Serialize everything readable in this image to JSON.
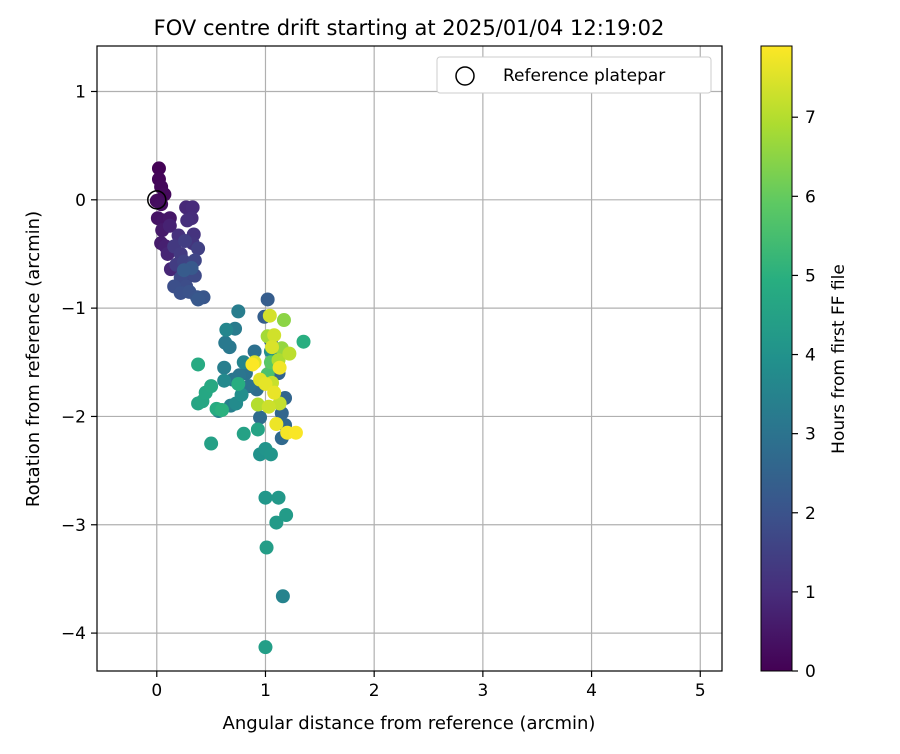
{
  "chart_data": {
    "type": "scatter",
    "title": "FOV centre drift starting at 2025/01/04 12:19:02",
    "xlabel": "Angular distance from reference (arcmin)",
    "ylabel": "Rotation from reference (arcmin)",
    "xlim": [
      -0.55,
      5.2
    ],
    "ylim": [
      -4.35,
      1.42
    ],
    "xticks": [
      0,
      1,
      2,
      3,
      4,
      5
    ],
    "yticks": [
      1,
      0,
      -1,
      -2,
      -3,
      -4
    ],
    "xtick_labels": [
      "0",
      "1",
      "2",
      "3",
      "4",
      "5"
    ],
    "ytick_labels": [
      "1",
      "0",
      "−1",
      "−2",
      "−3",
      "−4"
    ],
    "grid": true,
    "legend": {
      "position": "top-right",
      "entries": [
        "Reference platepar"
      ]
    },
    "reference_point": {
      "x": 0,
      "y": 0,
      "marker": "open-circle",
      "color": "#000000"
    },
    "colorbar": {
      "label": "Hours from first FF file",
      "min": 0,
      "max": 7.9,
      "ticks": [
        0,
        1,
        2,
        3,
        4,
        5,
        6,
        7
      ],
      "tick_labels": [
        "0",
        "1",
        "2",
        "3",
        "4",
        "5",
        "6",
        "7"
      ],
      "colormap": "viridis"
    },
    "points": [
      {
        "x": 0.02,
        "y": 0.29,
        "c": 0.05
      },
      {
        "x": 0.02,
        "y": 0.19,
        "c": 0.1
      },
      {
        "x": 0.04,
        "y": 0.12,
        "c": 0.15
      },
      {
        "x": 0.07,
        "y": 0.05,
        "c": 0.2
      },
      {
        "x": 0.0,
        "y": -0.01,
        "c": 0.25
      },
      {
        "x": 0.04,
        "y": -0.04,
        "c": 0.3
      },
      {
        "x": 0.01,
        "y": -0.17,
        "c": 0.4
      },
      {
        "x": 0.06,
        "y": -0.19,
        "c": 0.45
      },
      {
        "x": 0.12,
        "y": -0.17,
        "c": 0.5
      },
      {
        "x": 0.05,
        "y": -0.28,
        "c": 0.55
      },
      {
        "x": 0.04,
        "y": -0.4,
        "c": 0.6
      },
      {
        "x": 0.08,
        "y": -0.43,
        "c": 0.7
      },
      {
        "x": 0.12,
        "y": -0.24,
        "c": 0.75
      },
      {
        "x": 0.1,
        "y": -0.5,
        "c": 0.8
      },
      {
        "x": 0.13,
        "y": -0.64,
        "c": 0.85
      },
      {
        "x": 0.27,
        "y": -0.07,
        "c": 0.9
      },
      {
        "x": 0.33,
        "y": -0.07,
        "c": 0.95
      },
      {
        "x": 0.32,
        "y": -0.17,
        "c": 1.0
      },
      {
        "x": 0.28,
        "y": -0.19,
        "c": 1.05
      },
      {
        "x": 0.2,
        "y": -0.33,
        "c": 1.1
      },
      {
        "x": 0.34,
        "y": -0.32,
        "c": 1.15
      },
      {
        "x": 0.33,
        "y": -0.4,
        "c": 1.2
      },
      {
        "x": 0.16,
        "y": -0.43,
        "c": 1.3
      },
      {
        "x": 0.22,
        "y": -0.5,
        "c": 1.35
      },
      {
        "x": 0.18,
        "y": -0.6,
        "c": 1.4
      },
      {
        "x": 0.26,
        "y": -0.38,
        "c": 1.45
      },
      {
        "x": 0.38,
        "y": -0.45,
        "c": 1.5
      },
      {
        "x": 0.25,
        "y": -0.57,
        "c": 1.55
      },
      {
        "x": 0.3,
        "y": -0.62,
        "c": 1.6
      },
      {
        "x": 0.35,
        "y": -0.56,
        "c": 1.65
      },
      {
        "x": 0.3,
        "y": -0.7,
        "c": 1.7
      },
      {
        "x": 0.35,
        "y": -0.7,
        "c": 1.75
      },
      {
        "x": 0.22,
        "y": -0.72,
        "c": 1.8
      },
      {
        "x": 0.27,
        "y": -0.8,
        "c": 1.85
      },
      {
        "x": 0.16,
        "y": -0.8,
        "c": 1.9
      },
      {
        "x": 0.22,
        "y": -0.86,
        "c": 1.95
      },
      {
        "x": 0.3,
        "y": -0.85,
        "c": 2.0
      },
      {
        "x": 0.37,
        "y": -0.9,
        "c": 2.05
      },
      {
        "x": 0.43,
        "y": -0.9,
        "c": 2.1
      },
      {
        "x": 0.38,
        "y": -0.92,
        "c": 2.15
      },
      {
        "x": 0.32,
        "y": -0.63,
        "c": 2.2
      },
      {
        "x": 0.25,
        "y": -0.65,
        "c": 2.25
      },
      {
        "x": 1.02,
        "y": -0.92,
        "c": 2.3
      },
      {
        "x": 0.99,
        "y": -1.08,
        "c": 2.35
      },
      {
        "x": 1.05,
        "y": -1.3,
        "c": 2.4
      },
      {
        "x": 1.1,
        "y": -1.48,
        "c": 2.45
      },
      {
        "x": 1.12,
        "y": -1.6,
        "c": 2.5
      },
      {
        "x": 1.18,
        "y": -1.83,
        "c": 2.55
      },
      {
        "x": 1.15,
        "y": -1.97,
        "c": 2.6
      },
      {
        "x": 1.18,
        "y": -2.08,
        "c": 2.65
      },
      {
        "x": 1.15,
        "y": -2.2,
        "c": 2.7
      },
      {
        "x": 0.95,
        "y": -2.01,
        "c": 2.75
      },
      {
        "x": 0.92,
        "y": -1.75,
        "c": 2.8
      },
      {
        "x": 0.9,
        "y": -1.4,
        "c": 2.9
      },
      {
        "x": 0.82,
        "y": -1.6,
        "c": 2.95
      },
      {
        "x": 0.85,
        "y": -1.72,
        "c": 3.0
      },
      {
        "x": 0.76,
        "y": -1.62,
        "c": 3.05
      },
      {
        "x": 0.7,
        "y": -1.66,
        "c": 3.1
      },
      {
        "x": 0.67,
        "y": -1.36,
        "c": 3.15
      },
      {
        "x": 0.63,
        "y": -1.32,
        "c": 3.2
      },
      {
        "x": 0.72,
        "y": -1.19,
        "c": 3.25
      },
      {
        "x": 0.75,
        "y": -1.03,
        "c": 3.3
      },
      {
        "x": 0.62,
        "y": -1.55,
        "c": 3.35
      },
      {
        "x": 0.68,
        "y": -1.9,
        "c": 3.4
      },
      {
        "x": 0.57,
        "y": -1.95,
        "c": 3.45
      },
      {
        "x": 1.16,
        "y": -3.66,
        "c": 3.5
      },
      {
        "x": 0.8,
        "y": -1.5,
        "c": 3.55
      },
      {
        "x": 0.64,
        "y": -1.2,
        "c": 3.6
      },
      {
        "x": 0.62,
        "y": -1.67,
        "c": 3.7
      },
      {
        "x": 0.73,
        "y": -1.88,
        "c": 3.75
      },
      {
        "x": 0.78,
        "y": -1.8,
        "c": 3.85
      },
      {
        "x": 1.05,
        "y": -1.4,
        "c": 3.9
      },
      {
        "x": 0.95,
        "y": -2.35,
        "c": 4.0
      },
      {
        "x": 1.0,
        "y": -2.3,
        "c": 4.05
      },
      {
        "x": 1.05,
        "y": -2.35,
        "c": 4.1
      },
      {
        "x": 1.0,
        "y": -2.75,
        "c": 4.15
      },
      {
        "x": 1.12,
        "y": -2.75,
        "c": 4.2
      },
      {
        "x": 1.1,
        "y": -2.98,
        "c": 4.25
      },
      {
        "x": 1.19,
        "y": -2.91,
        "c": 4.3
      },
      {
        "x": 1.01,
        "y": -3.21,
        "c": 4.35
      },
      {
        "x": 1.0,
        "y": -4.13,
        "c": 4.4
      },
      {
        "x": 0.5,
        "y": -2.25,
        "c": 4.45
      },
      {
        "x": 0.8,
        "y": -2.16,
        "c": 4.5
      },
      {
        "x": 0.93,
        "y": -2.12,
        "c": 4.55
      },
      {
        "x": 0.38,
        "y": -1.88,
        "c": 4.6
      },
      {
        "x": 0.42,
        "y": -1.86,
        "c": 4.65
      },
      {
        "x": 0.45,
        "y": -1.78,
        "c": 4.7
      },
      {
        "x": 0.5,
        "y": -1.72,
        "c": 4.75
      },
      {
        "x": 0.38,
        "y": -1.52,
        "c": 4.8
      },
      {
        "x": 0.55,
        "y": -1.93,
        "c": 4.85
      },
      {
        "x": 0.75,
        "y": -1.7,
        "c": 4.9
      },
      {
        "x": 1.35,
        "y": -1.31,
        "c": 4.95
      },
      {
        "x": 0.6,
        "y": -1.94,
        "c": 5.0
      },
      {
        "x": 1.02,
        "y": -1.61,
        "c": 5.6
      },
      {
        "x": 1.05,
        "y": -1.5,
        "c": 5.8
      },
      {
        "x": 1.17,
        "y": -1.11,
        "c": 6.5
      },
      {
        "x": 1.15,
        "y": -1.37,
        "c": 6.6
      },
      {
        "x": 1.02,
        "y": -1.26,
        "c": 6.8
      },
      {
        "x": 1.12,
        "y": -1.48,
        "c": 6.9
      },
      {
        "x": 0.93,
        "y": -1.89,
        "c": 7.0
      },
      {
        "x": 1.22,
        "y": -1.42,
        "c": 7.1
      },
      {
        "x": 1.13,
        "y": -1.88,
        "c": 7.2
      },
      {
        "x": 1.06,
        "y": -1.69,
        "c": 7.25
      },
      {
        "x": 1.03,
        "y": -1.91,
        "c": 7.3
      },
      {
        "x": 1.08,
        "y": -1.25,
        "c": 7.35
      },
      {
        "x": 1.04,
        "y": -1.07,
        "c": 7.4
      },
      {
        "x": 1.06,
        "y": -1.36,
        "c": 7.45
      },
      {
        "x": 0.9,
        "y": -1.5,
        "c": 7.5
      },
      {
        "x": 0.95,
        "y": -1.66,
        "c": 7.55
      },
      {
        "x": 1.0,
        "y": -1.7,
        "c": 7.6
      },
      {
        "x": 1.08,
        "y": -1.78,
        "c": 7.65
      },
      {
        "x": 1.1,
        "y": -2.07,
        "c": 7.7
      },
      {
        "x": 1.13,
        "y": -1.55,
        "c": 7.75
      },
      {
        "x": 1.2,
        "y": -2.15,
        "c": 7.8
      },
      {
        "x": 1.28,
        "y": -2.15,
        "c": 7.85
      },
      {
        "x": 0.88,
        "y": -1.52,
        "c": 7.88
      }
    ]
  }
}
